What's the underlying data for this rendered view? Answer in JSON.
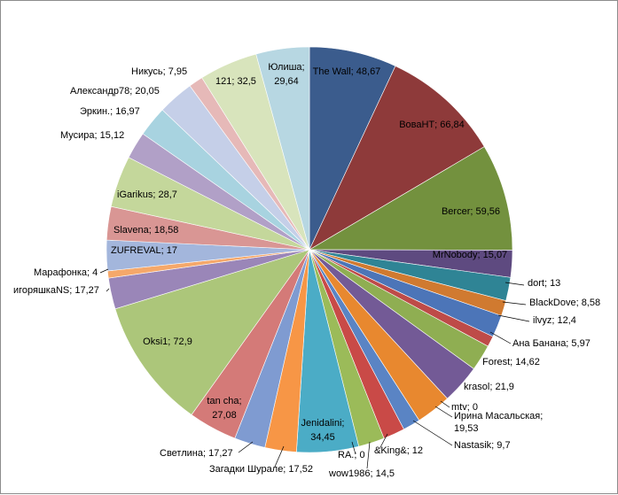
{
  "chart_data": {
    "type": "pie",
    "title": "",
    "start": "top, clockwise",
    "slices": [
      {
        "label": "The Wall",
        "value": 48.67,
        "text": "The Wall; 48,67",
        "color": "#3b5c8d"
      },
      {
        "label": "ВоваНТ",
        "value": 66.84,
        "text": "ВоваНТ; 66,84",
        "color": "#8e3a3a"
      },
      {
        "label": "Bercer",
        "value": 59.56,
        "text": "Bercer; 59,56",
        "color": "#73913e"
      },
      {
        "label": "MrNobody",
        "value": 15.07,
        "text": "MrNobody; 15,07",
        "color": "#5e4a80"
      },
      {
        "label": "dort",
        "value": 13,
        "text": "dort; 13",
        "color": "#2f8495"
      },
      {
        "label": "BlackDove",
        "value": 8.58,
        "text": "BlackDove; 8,58",
        "color": "#d07a30"
      },
      {
        "label": "ilvyz",
        "value": 12.4,
        "text": "ilvyz; 12,4",
        "color": "#4c75b8"
      },
      {
        "label": "Ана Банана",
        "value": 5.97,
        "text": "Ана Банана; 5,97",
        "color": "#be4b48"
      },
      {
        "label": "Forest",
        "value": 14.62,
        "text": "Forest; 14,62",
        "color": "#8fae52"
      },
      {
        "label": "krasol",
        "value": 21.9,
        "text": "krasol; 21,9",
        "color": "#735a96"
      },
      {
        "label": "mtv",
        "value": 0,
        "text": "mtv; 0",
        "color": "#3aa0b8"
      },
      {
        "label": "Ирина Масальская",
        "value": 19.53,
        "text": "Ирина Масальская; 19,53",
        "color": "#e8882f"
      },
      {
        "label": "Nastasik",
        "value": 9.7,
        "text": "Nastasik; 9,7",
        "color": "#5a84c4"
      },
      {
        "label": "&King&",
        "value": 12,
        "text": "&King&; 12",
        "color": "#c94a47"
      },
      {
        "label": "wow1986",
        "value": 14.5,
        "text": "wow1986; 14,5",
        "color": "#9bbb59"
      },
      {
        "label": "RA.",
        "value": 0,
        "text": "RA.; 0",
        "color": "#8064a2"
      },
      {
        "label": "Jenidalini",
        "value": 34.45,
        "text": "Jenidalini; 34,45",
        "color": "#4bacc6"
      },
      {
        "label": "Загадки Шурале",
        "value": 17.52,
        "text": "Загадки Шурале; 17,52",
        "color": "#f79646"
      },
      {
        "label": "Светлина",
        "value": 17.27,
        "text": "Светлина; 17,27",
        "color": "#7f9bd1"
      },
      {
        "label": "tan cha",
        "value": 27.08,
        "text": "tan cha; 27,08",
        "color": "#d47a78"
      },
      {
        "label": "Oksi1",
        "value": 72.9,
        "text": "Oksi1; 72,9",
        "color": "#acc67a"
      },
      {
        "label": "игоряшкаNS",
        "value": 17.27,
        "text": "игоряшкаNS; 17,27",
        "color": "#9a86b8"
      },
      {
        "label": "Марафонка",
        "value": 4,
        "text": "Марафонка; 4",
        "color": "#f5a86a"
      },
      {
        "label": "ZUFREVAL",
        "value": 17,
        "text": "ZUFREVAL; 17",
        "color": "#a3b6dc"
      },
      {
        "label": "Slavena",
        "value": 18.58,
        "text": "Slavena; 18,58",
        "color": "#d99694"
      },
      {
        "label": "iGarikus",
        "value": 28.7,
        "text": "iGarikus; 28,7",
        "color": "#c4d79b"
      },
      {
        "label": "Мусира",
        "value": 15.12,
        "text": "Мусира; 15,12",
        "color": "#b1a0c7"
      },
      {
        "label": "Эркин.",
        "value": 16.97,
        "text": "Эркин.; 16,97",
        "color": "#a8d3e0"
      },
      {
        "label": "Александр78",
        "value": 20.05,
        "text": "Александр78; 20,05",
        "color": "#c5cfe8"
      },
      {
        "label": "Никусь",
        "value": 7.95,
        "text": "Никусь; 7,95",
        "color": "#e6b9b8"
      },
      {
        "label": "121",
        "value": 32.5,
        "text": "121; 32,5",
        "color": "#d8e4bc"
      },
      {
        "label": "Юлиша",
        "value": 29.64,
        "text": "Юлиша; 29,64",
        "color": "#b7d7e2"
      }
    ]
  }
}
